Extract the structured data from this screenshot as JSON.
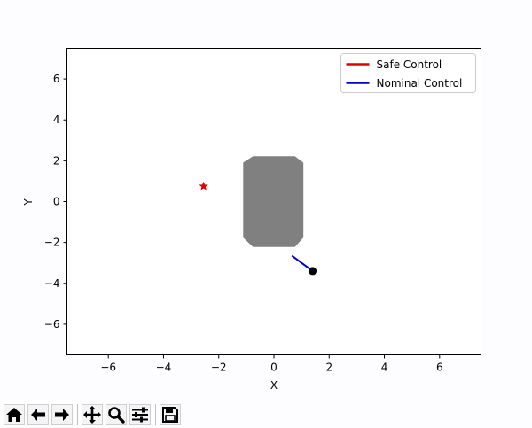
{
  "toolbar": {
    "buttons": [
      {
        "id": "home",
        "icon": "home-icon"
      },
      {
        "id": "back",
        "icon": "arrow-left-icon"
      },
      {
        "id": "forward",
        "icon": "arrow-right-icon"
      },
      {
        "id": "pan",
        "icon": "move-icon"
      },
      {
        "id": "zoom",
        "icon": "zoom-icon"
      },
      {
        "id": "configure",
        "icon": "sliders-icon"
      },
      {
        "id": "save",
        "icon": "save-icon"
      }
    ]
  },
  "chart_data": {
    "type": "line",
    "title": "",
    "xlabel": "X",
    "ylabel": "Y",
    "xlim": [
      -7.5,
      7.5
    ],
    "ylim": [
      -7.5,
      7.5
    ],
    "xticks": [
      -6,
      -4,
      -2,
      0,
      2,
      4,
      6
    ],
    "yticks": [
      -6,
      -4,
      -2,
      0,
      2,
      4,
      6
    ],
    "grid": false,
    "legend_position": "top-right",
    "series": [
      {
        "name": "Safe Control",
        "color": "#dd0000",
        "points": []
      },
      {
        "name": "Nominal Control",
        "color": "#0000cc",
        "points": [
          [
            0.65,
            -2.65
          ],
          [
            1.4,
            -3.4
          ]
        ]
      }
    ],
    "markers": [
      {
        "kind": "goal",
        "symbol": "star",
        "color": "#dd0000",
        "x": -2.55,
        "y": 0.75
      },
      {
        "kind": "robot",
        "symbol": "circle",
        "color": "#000000",
        "x": 1.4,
        "y": -3.4
      }
    ],
    "obstacle": {
      "color": "#808080",
      "vertices": [
        [
          -0.75,
          2.2
        ],
        [
          0.75,
          2.2
        ],
        [
          1.05,
          1.9
        ],
        [
          1.05,
          -1.75
        ],
        [
          0.75,
          -2.2
        ],
        [
          -0.75,
          -2.2
        ],
        [
          -1.1,
          -1.75
        ],
        [
          -1.1,
          1.9
        ]
      ]
    }
  }
}
